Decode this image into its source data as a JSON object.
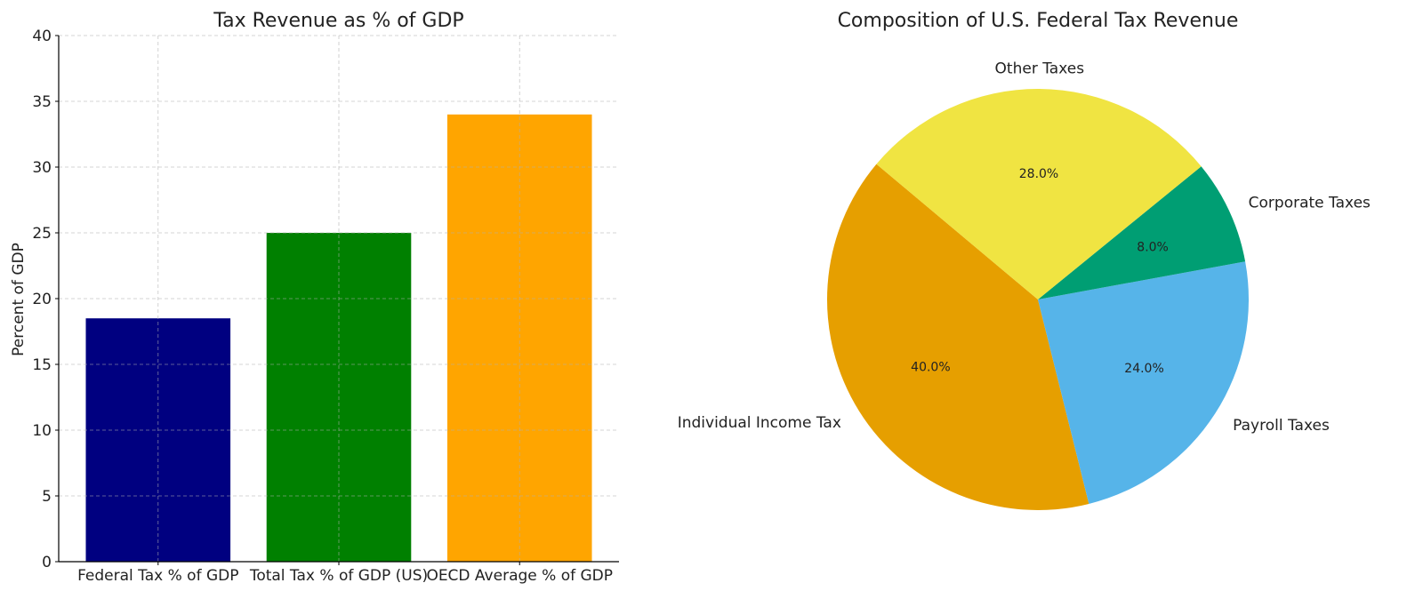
{
  "chart_data": [
    {
      "type": "bar",
      "title": "Tax Revenue as % of GDP",
      "xlabel": "",
      "ylabel": "Percent of GDP",
      "categories": [
        "Federal Tax % of GDP",
        "Total Tax % of GDP (US)",
        "OECD Average % of GDP"
      ],
      "values": [
        18.5,
        25,
        34
      ],
      "colors": [
        "#000080",
        "#008000",
        "#FFA500"
      ],
      "ylim": [
        0,
        40
      ],
      "yticks": [
        "0",
        "5",
        "10",
        "15",
        "20",
        "25",
        "30",
        "35",
        "40"
      ],
      "grid": true
    },
    {
      "type": "pie",
      "title": "Composition of U.S. Federal Tax Revenue",
      "labels": [
        "Individual Income Tax",
        "Payroll Taxes",
        "Corporate Taxes",
        "Other Taxes"
      ],
      "values": [
        40,
        24,
        8,
        28
      ],
      "autopct": [
        "40.0%",
        "24.0%",
        "8.0%",
        "28.0%"
      ],
      "colors": [
        "#E69F00",
        "#56B4E9",
        "#009E73",
        "#F0E442"
      ],
      "start_angle": 140
    }
  ]
}
